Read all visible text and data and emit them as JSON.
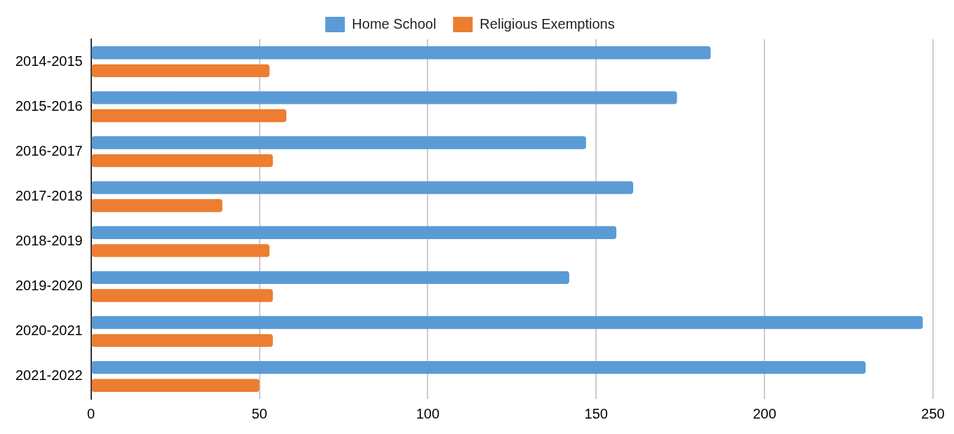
{
  "chart_data": {
    "type": "bar",
    "orientation": "horizontal",
    "categories": [
      "2014-2015",
      "2015-2016",
      "2016-2017",
      "2017-2018",
      "2018-2019",
      "2019-2020",
      "2020-2021",
      "2021-2022"
    ],
    "series": [
      {
        "name": "Home School",
        "color": "#5b9bd5",
        "values": [
          184,
          174,
          147,
          161,
          156,
          142,
          247,
          230
        ]
      },
      {
        "name": "Religious Exemptions",
        "color": "#ed7d31",
        "values": [
          53,
          58,
          54,
          39,
          53,
          54,
          54,
          50
        ]
      }
    ],
    "xlim": [
      0,
      250
    ],
    "xticks": [
      0,
      50,
      100,
      150,
      200,
      250
    ],
    "grid": "x",
    "legend": "top"
  }
}
